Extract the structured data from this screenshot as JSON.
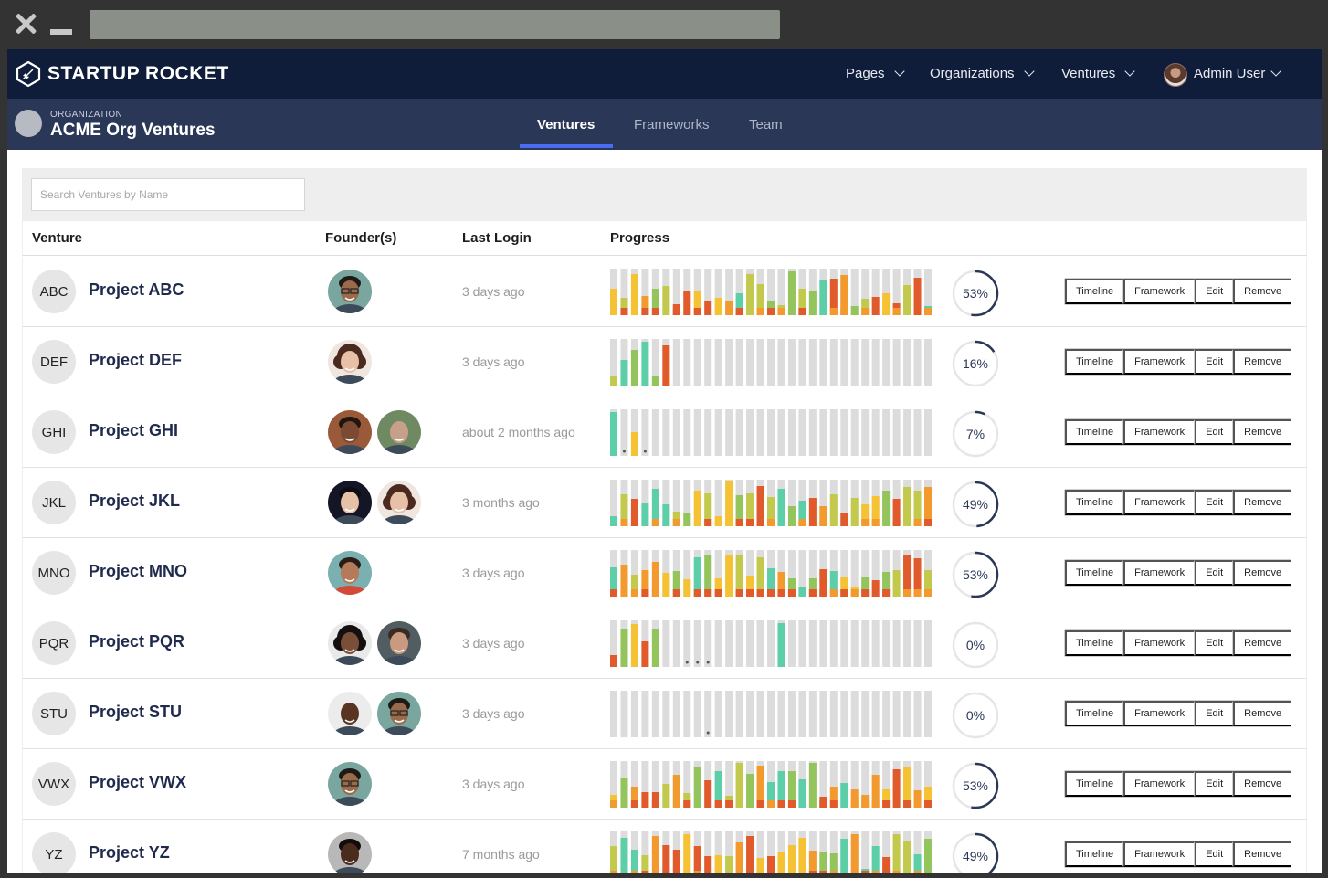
{
  "app": {
    "brand": "STARTUP ROCKET",
    "nav": {
      "pages": "Pages",
      "organizations": "Organizations",
      "ventures": "Ventures",
      "user": "Admin User"
    },
    "org": {
      "label": "ORGANIZATION",
      "name": "ACME Org Ventures"
    },
    "tabs": [
      "Ventures",
      "Frameworks",
      "Team"
    ],
    "active_tab": "Ventures"
  },
  "search": {
    "placeholder": "Search Ventures by Name"
  },
  "table": {
    "headers": {
      "venture": "Venture",
      "founders": "Founder(s)",
      "last_login": "Last Login",
      "progress": "Progress"
    },
    "actions": [
      "Timeline",
      "Framework",
      "Edit",
      "Remove"
    ],
    "rows": [
      {
        "abbr": "ABC",
        "name": "Project ABC",
        "last_login": "3 days ago",
        "progress": 53,
        "founders": [
          "f-green-glasses"
        ],
        "pattern": "full1"
      },
      {
        "abbr": "DEF",
        "name": "Project DEF",
        "last_login": "3 days ago",
        "progress": 16,
        "founders": [
          "f-curly-woman"
        ],
        "pattern": "def"
      },
      {
        "abbr": "GHI",
        "name": "Project GHI",
        "last_login": "about 2 months ago",
        "progress": 7,
        "founders": [
          "f-dark-man",
          "f-bald-man"
        ],
        "pattern": "ghi"
      },
      {
        "abbr": "JKL",
        "name": "Project JKL",
        "last_login": "3 months ago",
        "progress": 49,
        "founders": [
          "f-dark-woman",
          "f-curly-woman"
        ],
        "pattern": "full2"
      },
      {
        "abbr": "MNO",
        "name": "Project MNO",
        "last_login": "3 days ago",
        "progress": 53,
        "founders": [
          "f-red-man"
        ],
        "pattern": "full1"
      },
      {
        "abbr": "PQR",
        "name": "Project PQR",
        "last_login": "3 days ago",
        "progress": 0,
        "founders": [
          "f-afro-woman",
          "f-beard-man"
        ],
        "pattern": "pqr"
      },
      {
        "abbr": "STU",
        "name": "Project STU",
        "last_login": "3 days ago",
        "progress": 0,
        "founders": [
          "f-bald-black",
          "f-green-glasses"
        ],
        "pattern": "stu"
      },
      {
        "abbr": "VWX",
        "name": "Project VWX",
        "last_login": "3 days ago",
        "progress": 53,
        "founders": [
          "f-green-glasses"
        ],
        "pattern": "full1"
      },
      {
        "abbr": "YZ",
        "name": "Project YZ",
        "last_login": "7 months ago",
        "progress": 49,
        "founders": [
          "f-smile-man"
        ],
        "pattern": "full2"
      }
    ]
  },
  "colors": {
    "nav_bg": "#0f1d3a",
    "subnav_bg": "#2a3756",
    "tab_accent": "#4a6cf0",
    "bar_empty": "#dcdcdc",
    "bar_teal": "#5ccfa8",
    "bar_green": "#94c45c",
    "bar_olive": "#c2c94c",
    "bar_yellow": "#f4c232",
    "bar_orange": "#f29a2e",
    "bar_red": "#e05a2c",
    "ring": "#2a3756"
  }
}
